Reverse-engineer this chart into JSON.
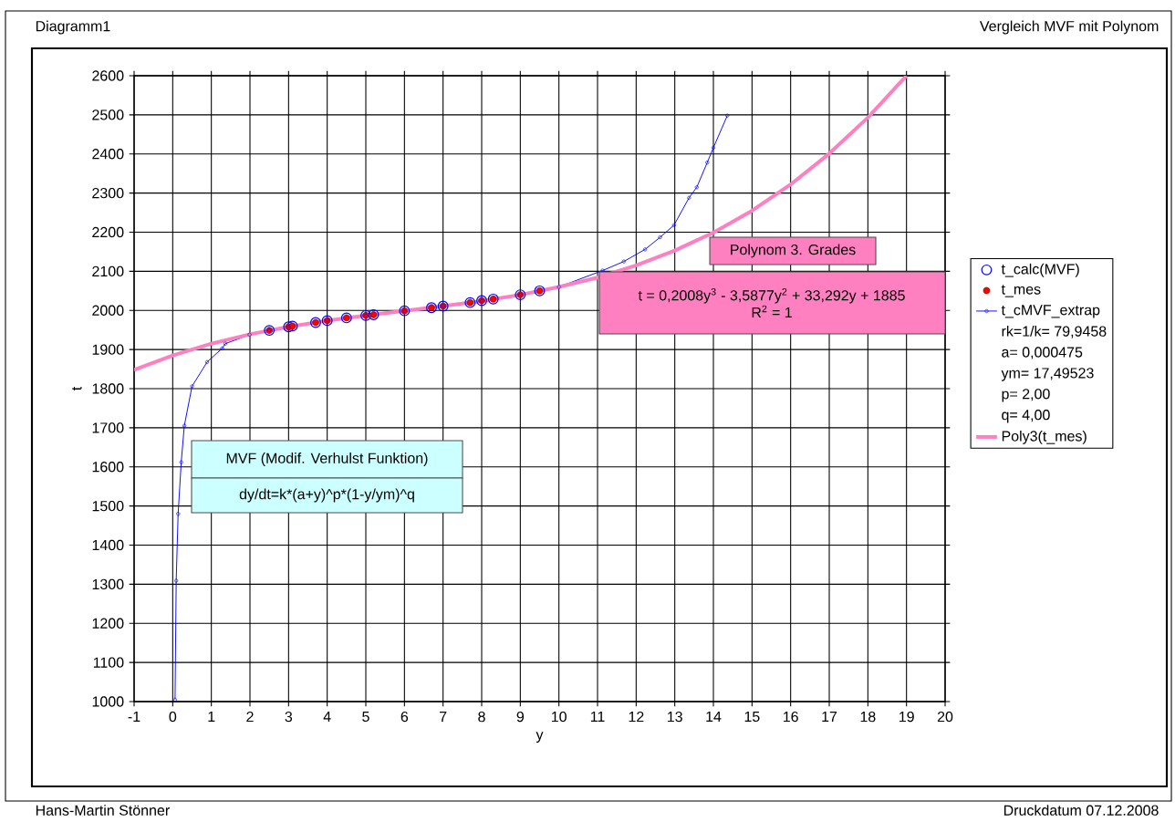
{
  "chart_data": {
    "type": "line",
    "title": "Vergleich MVF mit Polynom",
    "subtitle": "Diagramm1",
    "xlabel": "y",
    "ylabel": "t",
    "xlim": [
      -1,
      20
    ],
    "ylim": [
      1000,
      2600
    ],
    "xticks": [
      -1,
      0,
      1,
      2,
      3,
      4,
      5,
      6,
      7,
      8,
      9,
      10,
      11,
      12,
      13,
      14,
      15,
      16,
      17,
      18,
      19,
      20
    ],
    "yticks": [
      1000,
      1100,
      1200,
      1300,
      1400,
      1500,
      1600,
      1700,
      1800,
      1900,
      2000,
      2100,
      2200,
      2300,
      2400,
      2500,
      2600
    ],
    "grid": true,
    "legend": "right",
    "series": [
      {
        "name": "t_calc(MVF)",
        "type": "scatter",
        "marker": "circle",
        "color": "#0000ff",
        "x": [
          2.5,
          3,
          3.1,
          3.7,
          4,
          4.5,
          5,
          5.2,
          6,
          6.7,
          7,
          7.7,
          8,
          8.3,
          9,
          9.5
        ],
        "values": [
          1949,
          1958,
          1960,
          1969,
          1974,
          1981,
          1987,
          1989,
          1999,
          2007,
          2011,
          2020,
          2025,
          2029,
          2040,
          2050
        ]
      },
      {
        "name": "t_mes",
        "type": "scatter",
        "marker": "circle",
        "color": "#ff0000",
        "x": [
          2.5,
          3,
          3.1,
          3.7,
          4,
          4.5,
          5,
          5.2,
          6,
          6.7,
          7,
          7.7,
          8,
          8.3,
          9,
          9.5
        ],
        "values": [
          1949,
          1958,
          1960,
          1969,
          1974,
          1981,
          1987,
          1989,
          1999,
          2007,
          2011,
          2020,
          2025,
          2029,
          2040,
          2050
        ]
      },
      {
        "name": "t_cMVF_extrap",
        "marker": "circle",
        "color": "#0000ff",
        "x": [
          0.06,
          0.09,
          0.14,
          0.22,
          0.3,
          0.5,
          0.89,
          1.28,
          1.36,
          1.99,
          2.5,
          3,
          4,
          5,
          6,
          7,
          8,
          9,
          10,
          11.13,
          11.68,
          12.23,
          12.62,
          12.98,
          13.37,
          13.57,
          13.84,
          14.0,
          14.36
        ],
        "values": [
          1005,
          1309,
          1480,
          1612,
          1705,
          1806,
          1868,
          1903,
          1915,
          1938,
          1949,
          1958,
          1974,
          1987,
          1999,
          2011,
          2024,
          2040,
          2060,
          2102,
          2125,
          2156,
          2187,
          2218,
          2288,
          2315,
          2378,
          2416,
          2498
        ]
      },
      {
        "name": "Poly3(t_mes)",
        "marker": "none",
        "color": "#ff80c0",
        "x": [
          -1,
          0,
          1,
          2,
          3,
          4,
          5,
          6,
          7,
          8,
          9,
          10,
          11,
          12,
          13,
          14,
          15,
          16,
          17,
          18,
          19
        ],
        "values": [
          1848,
          1885,
          1915,
          1939,
          1958,
          1974,
          1987,
          1999,
          2011,
          2024,
          2040,
          2060,
          2084,
          2115,
          2153,
          2199,
          2255,
          2322,
          2401,
          2493,
          2600
        ]
      }
    ],
    "annotations": [
      "MVF (Modif. Verhulst Funktion)",
      "dy/dt=k*(a+y)^p*(1-y/ym)^q",
      "Polynom 3. Grades",
      "t = 0,2008y$^{3}$ - 3,5877y$^{2}$ + 33,292y + 1885",
      "R$^{2}$ = 1",
      "rk=1/k= 79,9458",
      "a= 0,000475",
      "ym= 17,49523",
      "p= 2,00",
      "q= 4,00",
      "Hans-Martin Stönner",
      "Druckdatum 07.12.2008"
    ]
  }
}
